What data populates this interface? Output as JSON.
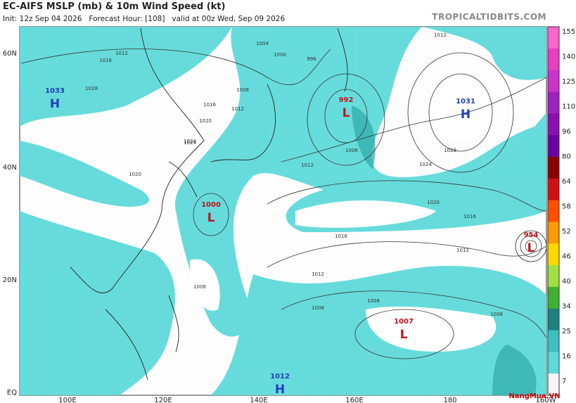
{
  "header": {
    "title": "EC-AIFS MSLP (mb) & 10m Wind Speed (kt)",
    "init": "Init: 12z Sep 04 2026   Forecast Hour: [108]   valid at 00z Wed, Sep 09 2026",
    "site": "TROPICALTIDBITS.COM"
  },
  "map": {
    "lat_labels": [
      "60N",
      "40N",
      "20N",
      "EQ"
    ],
    "lon_labels": [
      "100E",
      "120E",
      "140E",
      "160E",
      "180",
      "160W"
    ],
    "centers": [
      {
        "type": "H",
        "value": "1033"
      },
      {
        "type": "L",
        "value": "992"
      },
      {
        "type": "H",
        "value": "1031"
      },
      {
        "type": "L",
        "value": "1000"
      },
      {
        "type": "L",
        "value": "954"
      },
      {
        "type": "L",
        "value": "1007"
      },
      {
        "type": "H",
        "value": "1012"
      }
    ],
    "isobar_labels": [
      "1012",
      "1016",
      "1028",
      "1024",
      "1004",
      "1000",
      "996",
      "1016",
      "1020",
      "1012",
      "1008",
      "1006",
      "1012",
      "1024",
      "1028",
      "1020",
      "1016",
      "1012",
      "1016",
      "1012",
      "1008",
      "1008",
      "1008",
      "1008",
      "1020",
      "1024",
      "1012"
    ]
  },
  "colorbar": {
    "ticks": [
      "155",
      "140",
      "125",
      "110",
      "96",
      "80",
      "64",
      "58",
      "52",
      "46",
      "40",
      "34",
      "25",
      "16",
      "7"
    ]
  },
  "watermark": "NangMua.VN"
}
